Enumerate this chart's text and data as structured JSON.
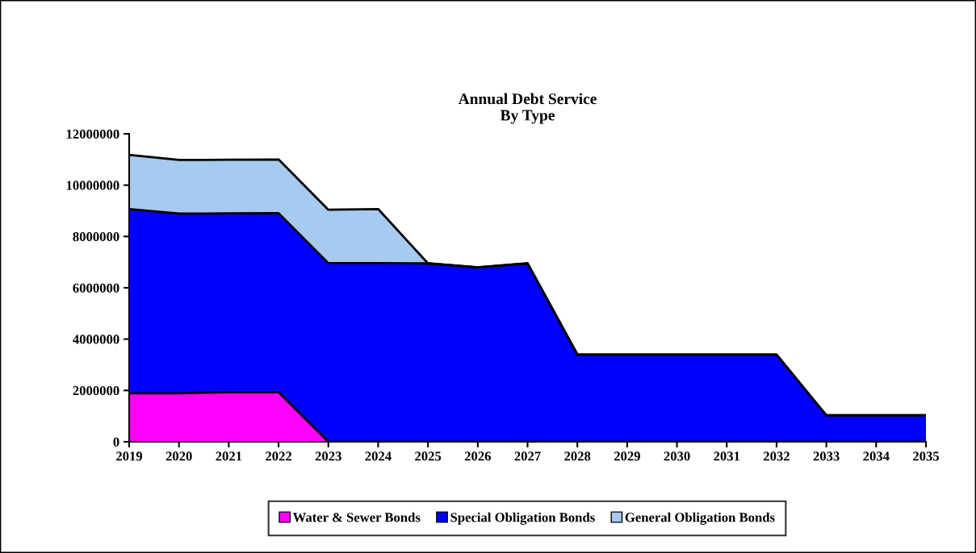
{
  "chart_data": {
    "type": "area",
    "stacked": true,
    "title": "Annual Debt Service\nBy Type",
    "categories": [
      "2019",
      "2020",
      "2021",
      "2022",
      "2023",
      "2024",
      "2025",
      "2026",
      "2027",
      "2028",
      "2029",
      "2030",
      "2031",
      "2032",
      "2033",
      "2034",
      "2035"
    ],
    "series": [
      {
        "name": "Water & Sewer Bonds",
        "color": "#ff00ff",
        "values": [
          1890000,
          1890000,
          1930000,
          1930000,
          0,
          0,
          0,
          0,
          0,
          0,
          0,
          0,
          0,
          0,
          0,
          0,
          0
        ]
      },
      {
        "name": "Special Obligation Bonds",
        "color": "#0000ff",
        "values": [
          7180000,
          7000000,
          6970000,
          6980000,
          6960000,
          6960000,
          6950000,
          6800000,
          6950000,
          3400000,
          3400000,
          3400000,
          3400000,
          3400000,
          1030000,
          1030000,
          1030000
        ]
      },
      {
        "name": "General Obligation Bonds",
        "color": "#a6caf0",
        "values": [
          2110000,
          2090000,
          2090000,
          2090000,
          2080000,
          2110000,
          0,
          0,
          0,
          0,
          0,
          0,
          0,
          0,
          0,
          0,
          0
        ]
      }
    ],
    "ylim": [
      0,
      12000000
    ],
    "yticks": [
      0,
      2000000,
      4000000,
      6000000,
      8000000,
      10000000,
      12000000
    ],
    "grid": false,
    "legend": "bottom"
  }
}
